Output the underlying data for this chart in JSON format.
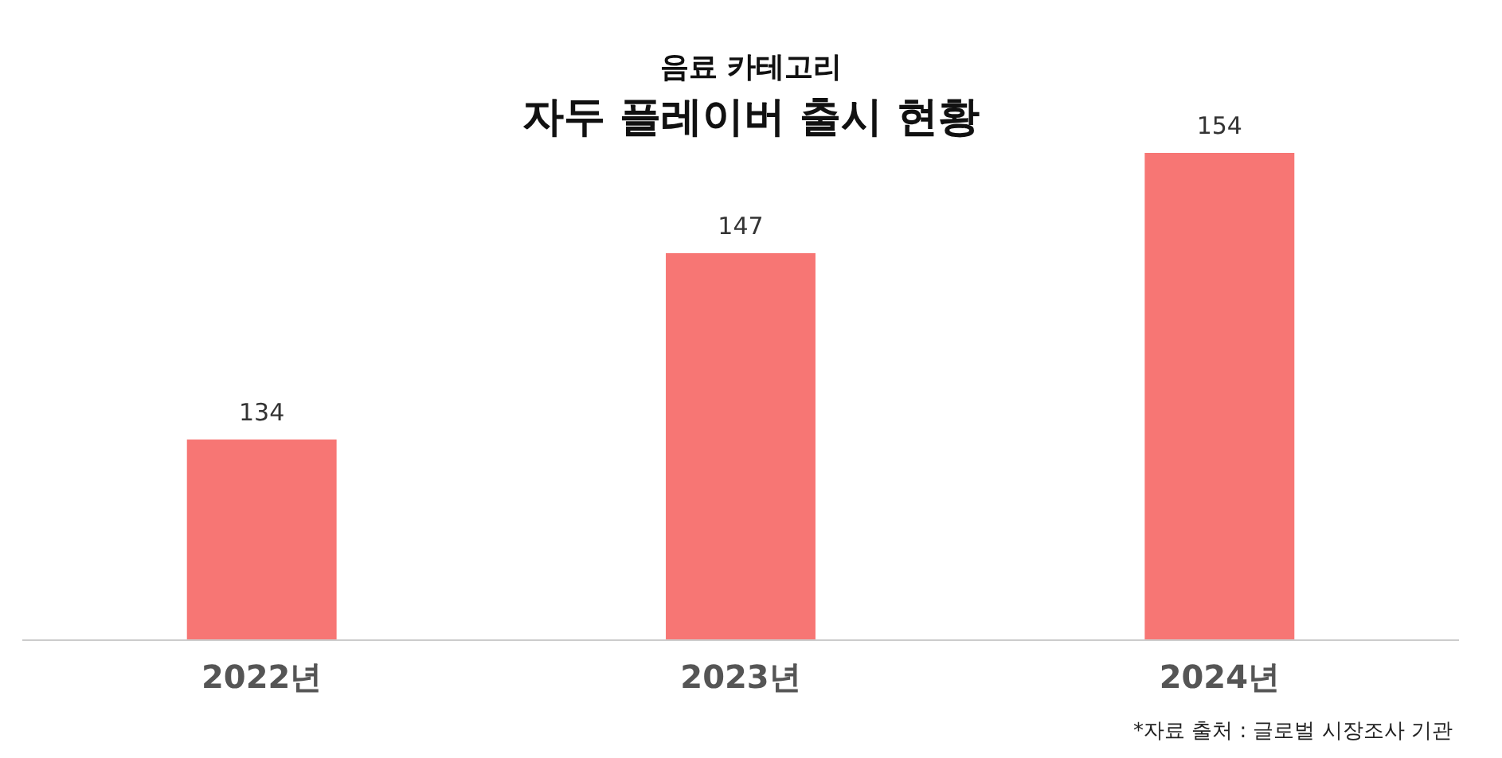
{
  "chart_data": {
    "type": "bar",
    "subtitle": "음료 카테고리",
    "title": "자두 플레이버 출시 현황",
    "categories": [
      "2022년",
      "2023년",
      "2024년"
    ],
    "values": [
      134,
      147,
      154
    ],
    "color": "#f77674",
    "ylim": [
      120,
      154
    ],
    "data_labels": true,
    "annotations": [
      "*자료 출처 : 글로벌 시장조사 기관"
    ]
  }
}
